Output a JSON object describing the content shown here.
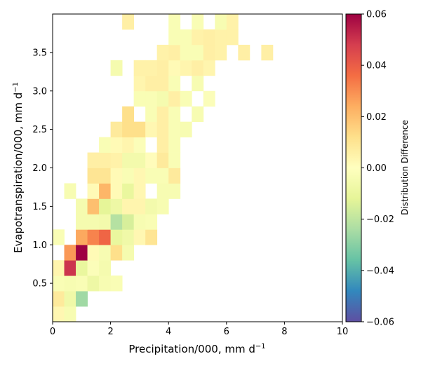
{
  "chart_data": {
    "type": "heatmap",
    "xlabel": "Precipitation/000,  mm d",
    "xlabel_sup": "−1",
    "ylabel": "Evapotranspiration/000,  mm d",
    "ylabel_sup": "−1",
    "xlim": [
      0,
      10
    ],
    "ylim": [
      0,
      4
    ],
    "xticks": [
      0,
      2,
      4,
      6,
      8,
      10
    ],
    "xtick_labels": [
      "0",
      "2",
      "4",
      "6",
      "8",
      "10"
    ],
    "yticks": [
      0.5,
      1.0,
      1.5,
      2.0,
      2.5,
      3.0,
      3.5
    ],
    "ytick_labels": [
      "0.5",
      "1.0",
      "1.5",
      "2.0",
      "2.5",
      "3.0",
      "3.5"
    ],
    "colormap": "Spectral_r",
    "colorbar": {
      "label": "Distribution Difference",
      "vmin": -0.06,
      "vmax": 0.06,
      "ticks": [
        -0.06,
        -0.04,
        -0.02,
        0.0,
        0.02,
        0.04,
        0.06
      ],
      "tick_labels": [
        "−0.06",
        "−0.04",
        "−0.02",
        "0.00",
        "0.02",
        "0.04",
        "0.06"
      ]
    },
    "bin_width": {
      "x": 0.4,
      "y": 0.2
    },
    "grid": false,
    "bins": [
      {
        "x": 0.0,
        "y": 0.0,
        "value": 0.003
      },
      {
        "x": 0.4,
        "y": 0.0,
        "value": -0.004
      },
      {
        "x": 0.0,
        "y": 0.2,
        "value": 0.008
      },
      {
        "x": 0.4,
        "y": 0.2,
        "value": -0.007
      },
      {
        "x": 0.8,
        "y": 0.2,
        "value": -0.026
      },
      {
        "x": 0.0,
        "y": 0.4,
        "value": -0.003
      },
      {
        "x": 0.4,
        "y": 0.4,
        "value": -0.004
      },
      {
        "x": 0.8,
        "y": 0.4,
        "value": -0.003
      },
      {
        "x": 1.2,
        "y": 0.4,
        "value": -0.008
      },
      {
        "x": 1.6,
        "y": 0.4,
        "value": -0.004
      },
      {
        "x": 2.0,
        "y": 0.4,
        "value": -0.003
      },
      {
        "x": 0.0,
        "y": 0.6,
        "value": 0.004
      },
      {
        "x": 0.4,
        "y": 0.6,
        "value": 0.05
      },
      {
        "x": 0.8,
        "y": 0.6,
        "value": -0.01
      },
      {
        "x": 1.2,
        "y": 0.6,
        "value": -0.002
      },
      {
        "x": 1.6,
        "y": 0.6,
        "value": -0.005
      },
      {
        "x": 0.4,
        "y": 0.8,
        "value": 0.028
      },
      {
        "x": 0.8,
        "y": 0.8,
        "value": 0.06
      },
      {
        "x": 1.2,
        "y": 0.8,
        "value": 0.002
      },
      {
        "x": 1.6,
        "y": 0.8,
        "value": -0.004
      },
      {
        "x": 2.0,
        "y": 0.8,
        "value": 0.012
      },
      {
        "x": 2.4,
        "y": 0.8,
        "value": -0.005
      },
      {
        "x": 0.8,
        "y": 1.0,
        "value": 0.025
      },
      {
        "x": 1.2,
        "y": 1.0,
        "value": 0.032
      },
      {
        "x": 1.6,
        "y": 1.0,
        "value": 0.038
      },
      {
        "x": 2.0,
        "y": 1.0,
        "value": -0.01
      },
      {
        "x": 2.4,
        "y": 1.0,
        "value": -0.007
      },
      {
        "x": 2.8,
        "y": 1.0,
        "value": 0.003
      },
      {
        "x": 3.2,
        "y": 1.0,
        "value": 0.01
      },
      {
        "x": 0.0,
        "y": 1.0,
        "value": -0.003
      },
      {
        "x": 0.8,
        "y": 1.2,
        "value": -0.005
      },
      {
        "x": 1.2,
        "y": 1.2,
        "value": -0.005
      },
      {
        "x": 1.6,
        "y": 1.2,
        "value": -0.006
      },
      {
        "x": 2.0,
        "y": 1.2,
        "value": -0.022
      },
      {
        "x": 2.4,
        "y": 1.2,
        "value": -0.015
      },
      {
        "x": 2.8,
        "y": 1.2,
        "value": -0.004
      },
      {
        "x": 3.2,
        "y": 1.2,
        "value": -0.003
      },
      {
        "x": 0.8,
        "y": 1.4,
        "value": -0.005
      },
      {
        "x": 1.2,
        "y": 1.4,
        "value": 0.02
      },
      {
        "x": 1.6,
        "y": 1.4,
        "value": -0.012
      },
      {
        "x": 2.0,
        "y": 1.4,
        "value": -0.008
      },
      {
        "x": 2.4,
        "y": 1.4,
        "value": 0.004
      },
      {
        "x": 2.8,
        "y": 1.4,
        "value": 0.004
      },
      {
        "x": 3.2,
        "y": 1.4,
        "value": -0.006
      },
      {
        "x": 3.6,
        "y": 1.4,
        "value": -0.004
      },
      {
        "x": 0.4,
        "y": 1.6,
        "value": -0.004
      },
      {
        "x": 1.2,
        "y": 1.6,
        "value": 0.002
      },
      {
        "x": 1.6,
        "y": 1.6,
        "value": 0.022
      },
      {
        "x": 2.0,
        "y": 1.6,
        "value": 0.002
      },
      {
        "x": 2.4,
        "y": 1.6,
        "value": -0.01
      },
      {
        "x": 2.8,
        "y": 1.6,
        "value": 0.003
      },
      {
        "x": 3.6,
        "y": 1.6,
        "value": -0.004
      },
      {
        "x": 4.0,
        "y": 1.6,
        "value": -0.004
      },
      {
        "x": 1.2,
        "y": 1.8,
        "value": 0.01
      },
      {
        "x": 1.6,
        "y": 1.8,
        "value": 0.01
      },
      {
        "x": 2.0,
        "y": 1.8,
        "value": 0.002
      },
      {
        "x": 2.4,
        "y": 1.8,
        "value": -0.003
      },
      {
        "x": 2.8,
        "y": 1.8,
        "value": 0.003
      },
      {
        "x": 3.2,
        "y": 1.8,
        "value": -0.003
      },
      {
        "x": 3.6,
        "y": 1.8,
        "value": -0.003
      },
      {
        "x": 4.0,
        "y": 1.8,
        "value": 0.008
      },
      {
        "x": 1.2,
        "y": 2.0,
        "value": 0.006
      },
      {
        "x": 1.6,
        "y": 2.0,
        "value": 0.006
      },
      {
        "x": 2.0,
        "y": 2.0,
        "value": 0.005
      },
      {
        "x": 2.4,
        "y": 2.0,
        "value": -0.006
      },
      {
        "x": 2.8,
        "y": 2.0,
        "value": -0.006
      },
      {
        "x": 3.2,
        "y": 2.0,
        "value": 0.001
      },
      {
        "x": 3.6,
        "y": 2.0,
        "value": 0.008
      },
      {
        "x": 4.0,
        "y": 2.0,
        "value": -0.003
      },
      {
        "x": 1.6,
        "y": 2.2,
        "value": -0.003
      },
      {
        "x": 2.0,
        "y": 2.2,
        "value": 0.002
      },
      {
        "x": 2.4,
        "y": 2.2,
        "value": 0.004
      },
      {
        "x": 2.8,
        "y": 2.2,
        "value": -0.002
      },
      {
        "x": 3.6,
        "y": 2.2,
        "value": 0.006
      },
      {
        "x": 4.0,
        "y": 2.2,
        "value": -0.003
      },
      {
        "x": 2.0,
        "y": 2.4,
        "value": 0.008
      },
      {
        "x": 2.4,
        "y": 2.4,
        "value": 0.012
      },
      {
        "x": 2.8,
        "y": 2.4,
        "value": 0.012
      },
      {
        "x": 3.2,
        "y": 2.4,
        "value": 0.003
      },
      {
        "x": 3.6,
        "y": 2.4,
        "value": 0.006
      },
      {
        "x": 4.0,
        "y": 2.4,
        "value": -0.003
      },
      {
        "x": 4.4,
        "y": 2.4,
        "value": -0.004
      },
      {
        "x": 2.4,
        "y": 2.6,
        "value": 0.012
      },
      {
        "x": 3.2,
        "y": 2.6,
        "value": -0.003
      },
      {
        "x": 3.6,
        "y": 2.6,
        "value": 0.006
      },
      {
        "x": 4.0,
        "y": 2.6,
        "value": -0.003
      },
      {
        "x": 4.8,
        "y": 2.6,
        "value": -0.004
      },
      {
        "x": 2.8,
        "y": 2.8,
        "value": -0.003
      },
      {
        "x": 3.2,
        "y": 2.8,
        "value": -0.003
      },
      {
        "x": 3.6,
        "y": 2.8,
        "value": -0.005
      },
      {
        "x": 4.0,
        "y": 2.8,
        "value": 0.006
      },
      {
        "x": 4.4,
        "y": 2.8,
        "value": -0.003
      },
      {
        "x": 5.2,
        "y": 2.8,
        "value": -0.002
      },
      {
        "x": 2.8,
        "y": 3.0,
        "value": 0.004
      },
      {
        "x": 3.2,
        "y": 3.0,
        "value": 0.006
      },
      {
        "x": 3.6,
        "y": 3.0,
        "value": 0.006
      },
      {
        "x": 4.0,
        "y": 3.0,
        "value": -0.003
      },
      {
        "x": 4.8,
        "y": 3.0,
        "value": -0.004
      },
      {
        "x": 2.8,
        "y": 3.2,
        "value": 0.005
      },
      {
        "x": 3.2,
        "y": 3.2,
        "value": 0.005
      },
      {
        "x": 3.6,
        "y": 3.2,
        "value": 0.006
      },
      {
        "x": 4.0,
        "y": 3.2,
        "value": 0.002
      },
      {
        "x": 4.4,
        "y": 3.2,
        "value": 0.004
      },
      {
        "x": 4.8,
        "y": 3.2,
        "value": 0.006
      },
      {
        "x": 5.2,
        "y": 3.2,
        "value": 0.004
      },
      {
        "x": 2.0,
        "y": 3.2,
        "value": -0.005
      },
      {
        "x": 3.6,
        "y": 3.4,
        "value": 0.005
      },
      {
        "x": 4.0,
        "y": 3.4,
        "value": 0.006
      },
      {
        "x": 4.4,
        "y": 3.4,
        "value": -0.003
      },
      {
        "x": 4.8,
        "y": 3.4,
        "value": -0.003
      },
      {
        "x": 5.2,
        "y": 3.4,
        "value": 0.006
      },
      {
        "x": 5.6,
        "y": 3.4,
        "value": 0.005
      },
      {
        "x": 6.4,
        "y": 3.4,
        "value": 0.006
      },
      {
        "x": 7.2,
        "y": 3.4,
        "value": 0.006
      },
      {
        "x": 4.0,
        "y": 3.6,
        "value": -0.003
      },
      {
        "x": 4.4,
        "y": 3.6,
        "value": -0.003
      },
      {
        "x": 4.8,
        "y": 3.6,
        "value": 0.005
      },
      {
        "x": 5.2,
        "y": 3.6,
        "value": 0.006
      },
      {
        "x": 5.6,
        "y": 3.6,
        "value": 0.005
      },
      {
        "x": 6.0,
        "y": 3.6,
        "value": 0.005
      },
      {
        "x": 2.4,
        "y": 3.8,
        "value": 0.006
      },
      {
        "x": 4.0,
        "y": 3.8,
        "value": -0.003
      },
      {
        "x": 4.8,
        "y": 3.8,
        "value": -0.003
      },
      {
        "x": 5.6,
        "y": 3.8,
        "value": -0.004
      },
      {
        "x": 6.0,
        "y": 3.8,
        "value": 0.005
      },
      {
        "x": 3.6,
        "y": 4.0,
        "value": 0.006
      },
      {
        "x": 4.4,
        "y": 4.0,
        "value": -0.004
      },
      {
        "x": 4.8,
        "y": 4.0,
        "value": -0.003
      },
      {
        "x": 5.2,
        "y": 4.0,
        "value": -0.003
      },
      {
        "x": 6.0,
        "y": 4.0,
        "value": 0.005
      },
      {
        "x": 4.0,
        "y": 4.2,
        "value": -0.003
      },
      {
        "x": 4.4,
        "y": 4.2,
        "value": -0.004
      },
      {
        "x": 4.8,
        "y": 4.2,
        "value": -0.004
      },
      {
        "x": 5.2,
        "y": 4.2,
        "value": 0.005
      },
      {
        "x": 6.0,
        "y": 4.2,
        "value": 0.005
      },
      {
        "x": 7.2,
        "y": 4.2,
        "value": 0.005
      },
      {
        "x": 8.4,
        "y": 4.2,
        "value": 0.005
      },
      {
        "x": 8.8,
        "y": 4.2,
        "value": -0.004
      },
      {
        "x": 5.6,
        "y": 4.4,
        "value": 0.006
      },
      {
        "x": 4.0,
        "y": 4.4,
        "value": -0.005
      },
      {
        "x": 4.4,
        "y": 4.4,
        "value": -0.004
      },
      {
        "x": 5.2,
        "y": 4.4,
        "value": -0.009
      },
      {
        "x": 6.0,
        "y": 4.4,
        "value": 0.005
      },
      {
        "x": 7.2,
        "y": 4.4,
        "value": -0.004
      },
      {
        "x": 8.4,
        "y": 4.4,
        "value": 0.005
      },
      {
        "x": 6.4,
        "y": 4.6,
        "value": -0.004
      },
      {
        "x": 6.8,
        "y": 4.6,
        "value": -0.004
      },
      {
        "x": 8.0,
        "y": 4.6,
        "value": 0.006
      },
      {
        "x": 8.4,
        "y": 4.8,
        "value": 0.005
      },
      {
        "x": 8.8,
        "y": 4.8,
        "value": 0.005
      },
      {
        "x": 9.2,
        "y": 4.8,
        "value": 0.004
      },
      {
        "x": 9.6,
        "y": 5.0,
        "value": -0.004
      },
      {
        "x": 8.8,
        "y": 5.2,
        "value": 0.004
      },
      {
        "x": 6.0,
        "y": 5.2,
        "value": 0.005
      },
      {
        "x": 7.2,
        "y": 5.4,
        "value": -0.008
      },
      {
        "x": 8.4,
        "y": 5.4,
        "value": -0.004
      },
      {
        "x": 6.0,
        "y": 5.4,
        "value": 0.005
      },
      {
        "x": 4.8,
        "y": 5.6,
        "value": -0.004
      },
      {
        "x": 5.2,
        "y": 5.6,
        "value": -0.004
      },
      {
        "x": 7.2,
        "y": 5.6,
        "value": -0.004
      },
      {
        "x": 4.0,
        "y": 5.8,
        "value": -0.004
      },
      {
        "x": 4.4,
        "y": 5.8,
        "value": -0.004
      },
      {
        "x": 5.2,
        "y": 5.8,
        "value": -0.012
      },
      {
        "x": 7.2,
        "y": 5.8,
        "value": -0.004
      }
    ]
  }
}
